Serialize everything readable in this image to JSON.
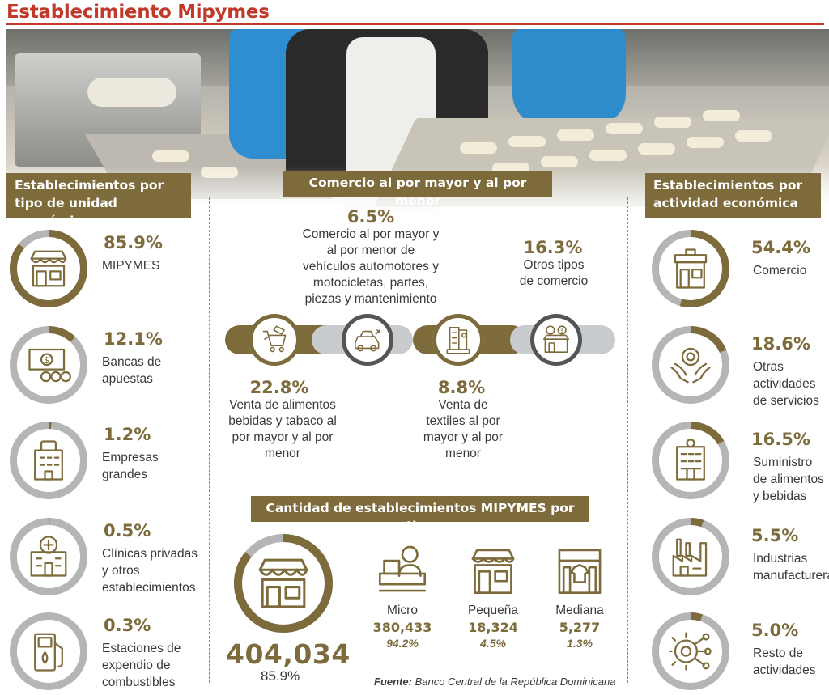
{
  "title": "Establecimiento Mipymes",
  "colors": {
    "accent": "#7d6b3c",
    "title": "#c0392b",
    "ring_gray": "#b5b5b5",
    "bar_light": "#c9ccce"
  },
  "left_panel": {
    "header": "Establecimientos por tipo de unidad económica",
    "items": [
      {
        "pct": "85.9%",
        "label": "MIPYMES",
        "icon": "storefront-icon",
        "value": 85.9
      },
      {
        "pct": "12.1%",
        "label": "Bancas de apuestas",
        "icon": "cash-lottery-icon",
        "value": 12.1
      },
      {
        "pct": "1.2%",
        "label": "Empresas grandes",
        "icon": "office-building-icon",
        "value": 1.2
      },
      {
        "pct": "0.5%",
        "label": "Clínicas privadas y otros establecimientos",
        "icon": "hospital-icon",
        "value": 0.5
      },
      {
        "pct": "0.3%",
        "label": "Estaciones de expendio de combustibles",
        "icon": "fuel-pump-icon",
        "value": 0.3
      }
    ]
  },
  "center_panel": {
    "header": "Comercio al por mayor y al por menor",
    "items": [
      {
        "pct": "22.8%",
        "label": "Venta de alimentos bebidas y tabaco al por mayor y al por menor",
        "icon": "shopping-cart-icon",
        "value": 22.8
      },
      {
        "pct": "6.5%",
        "label": "Comercio al por mayor y al por menor de vehículos automotores y motocicletas, partes, piezas y mantenimiento",
        "icon": "car-repair-icon",
        "value": 6.5
      },
      {
        "pct": "8.8%",
        "label": "Venta de textiles al por mayor y al por menor",
        "icon": "textile-icon",
        "value": 8.8
      },
      {
        "pct": "16.3%",
        "label": "Otros tipos de comercio",
        "icon": "commerce-icon",
        "value": 16.3
      }
    ]
  },
  "right_panel": {
    "header": "Establecimientos por actividad económica",
    "items": [
      {
        "pct": "54.4%",
        "label": "Comercio",
        "icon": "shop-icon",
        "value": 54.4
      },
      {
        "pct": "18.6%",
        "label": "Otras actividades de servicios",
        "icon": "service-hands-icon",
        "value": 18.6
      },
      {
        "pct": "16.5%",
        "label": "Suministro de alimentos y bebidas",
        "icon": "hotel-icon",
        "value": 16.5
      },
      {
        "pct": "5.5%",
        "label": "Industrias manufactureras",
        "icon": "factory-icon",
        "value": 5.5
      },
      {
        "pct": "5.0%",
        "label": "Resto de actividades",
        "icon": "gear-network-icon",
        "value": 5.0
      }
    ]
  },
  "bottom_panel": {
    "header": "Cantidad de establecimientos MIPYMES por tipo",
    "total": "404,034",
    "total_pct": "85.9%",
    "types": [
      {
        "name": "Micro",
        "count": "380,433",
        "pct": "94.2%",
        "icon": "cashier-icon"
      },
      {
        "name": "Pequeña",
        "count": "18,324",
        "pct": "4.5%",
        "icon": "small-store-icon"
      },
      {
        "name": "Mediana",
        "count": "5,277",
        "pct": "1.3%",
        "icon": "clothing-store-icon"
      }
    ]
  },
  "source": {
    "label": "Fuente:",
    "text": "Banco Central de la República Dominicana"
  },
  "chart_data": [
    {
      "type": "pie",
      "title": "Establecimientos por tipo de unidad económica",
      "categories": [
        "MIPYMES",
        "Bancas de apuestas",
        "Empresas grandes",
        "Clínicas privadas y otros establecimientos",
        "Estaciones de expendio de combustibles"
      ],
      "values": [
        85.9,
        12.1,
        1.2,
        0.5,
        0.3
      ]
    },
    {
      "type": "bar",
      "title": "Comercio al por mayor y al por menor",
      "categories": [
        "Venta de alimentos bebidas y tabaco al por mayor y al por menor",
        "Comercio al por mayor y al por menor de vehículos automotores y motocicletas, partes, piezas y mantenimiento",
        "Venta de textiles al por mayor y al por menor",
        "Otros tipos de comercio"
      ],
      "values": [
        22.8,
        6.5,
        8.8,
        16.3
      ]
    },
    {
      "type": "pie",
      "title": "Establecimientos por actividad económica",
      "categories": [
        "Comercio",
        "Otras actividades de servicios",
        "Suministro de alimentos y bebidas",
        "Industrias manufactureras",
        "Resto de actividades"
      ],
      "values": [
        54.4,
        18.6,
        16.5,
        5.5,
        5.0
      ]
    },
    {
      "type": "table",
      "title": "Cantidad de establecimientos MIPYMES por tipo",
      "categories": [
        "Micro",
        "Pequeña",
        "Mediana"
      ],
      "values": [
        380433,
        18324,
        5277
      ],
      "percent": [
        94.2,
        4.5,
        1.3
      ],
      "total": 404034
    }
  ]
}
